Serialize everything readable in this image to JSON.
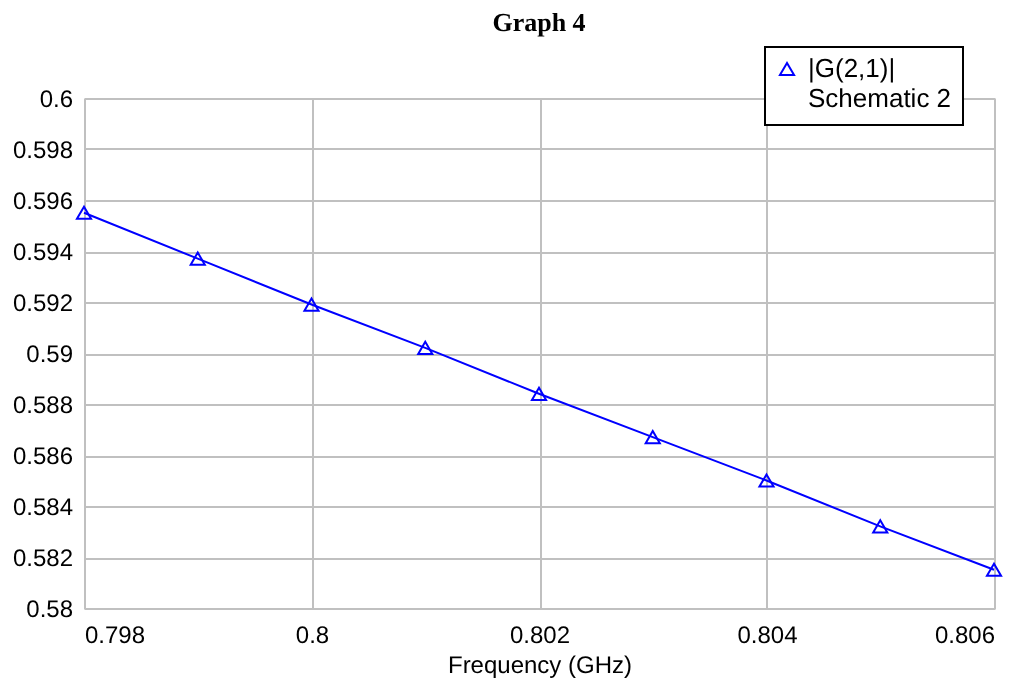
{
  "chart_data": {
    "type": "line",
    "title": "Graph 4",
    "xlabel": "Frequency (GHz)",
    "x": [
      0.798,
      0.799,
      0.8,
      0.801,
      0.802,
      0.803,
      0.804,
      0.805,
      0.806
    ],
    "series": [
      {
        "name": "|G(2,1)|\nSchematic 2",
        "color": "#0000ff",
        "values": [
          0.5955,
          0.5937,
          0.5919,
          0.5902,
          0.5884,
          0.5867,
          0.585,
          0.5832,
          0.5815
        ]
      }
    ],
    "xlim": [
      0.798,
      0.806
    ],
    "xticks": [
      0.798,
      0.8,
      0.802,
      0.804,
      0.806
    ],
    "ylim": [
      0.58,
      0.6
    ],
    "yticks": [
      0.58,
      0.582,
      0.584,
      0.586,
      0.588,
      0.59,
      0.592,
      0.594,
      0.596,
      0.598,
      0.6
    ],
    "grid": true,
    "legend": "top right",
    "marker": "triangle",
    "line_style": "solid"
  }
}
